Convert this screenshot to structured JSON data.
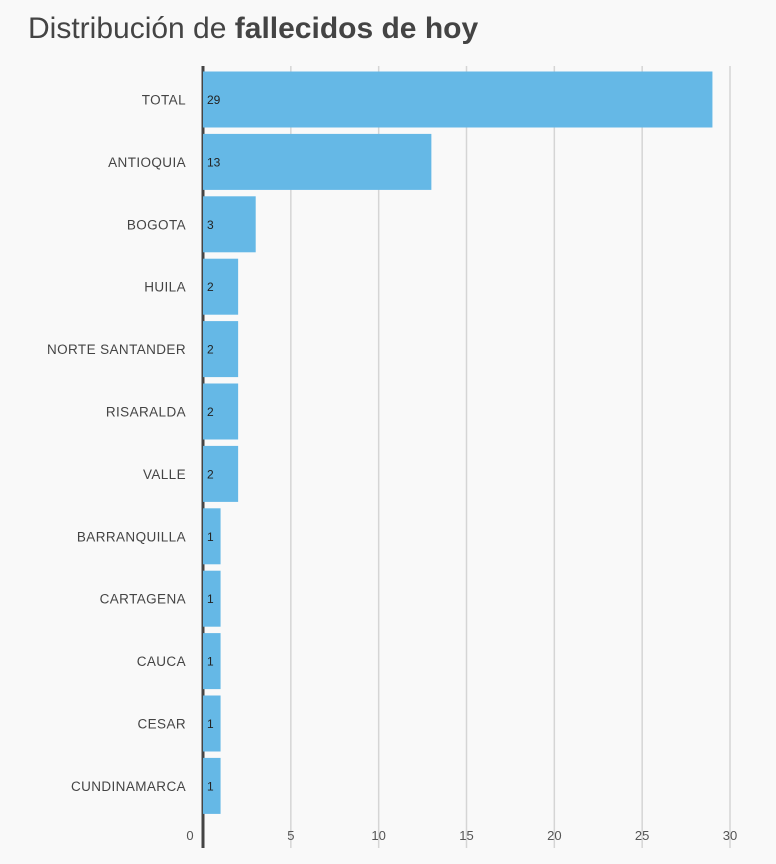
{
  "title": {
    "prefix": "Distribución de ",
    "bold": "fallecidos de hoy"
  },
  "colors": {
    "bar": "#65b8e6",
    "grid": "#d5d5d5",
    "axis": "#444444",
    "background": "#f9f9f9"
  },
  "chart_data": {
    "type": "bar",
    "orientation": "horizontal",
    "title": "Distribución de fallecidos de hoy",
    "categories": [
      "TOTAL",
      "ANTIOQUIA",
      "BOGOTA",
      "HUILA",
      "NORTE SANTANDER",
      "RISARALDA",
      "VALLE",
      "BARRANQUILLA",
      "CARTAGENA",
      "CAUCA",
      "CESAR",
      "CUNDINAMARCA"
    ],
    "values": [
      29,
      13,
      3,
      2,
      2,
      2,
      2,
      1,
      1,
      1,
      1,
      1
    ],
    "xlim": [
      0,
      30
    ],
    "xticks": [
      0,
      5,
      10,
      15,
      20,
      25,
      30
    ],
    "xlabel": "",
    "ylabel": "",
    "grid": true,
    "data_labels": true
  }
}
